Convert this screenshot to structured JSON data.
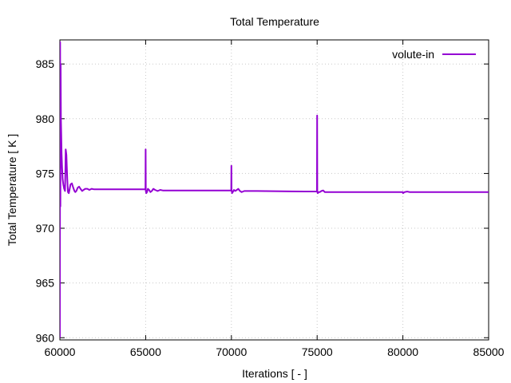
{
  "chart_data": {
    "type": "line",
    "title": "Total Temperature",
    "xlabel": "Iterations [ - ]",
    "ylabel": "Total Temperature [ K ]",
    "xlim": [
      60000,
      85000
    ],
    "ylim": [
      959.8,
      987.2
    ],
    "x_ticks": [
      60000,
      65000,
      70000,
      75000,
      80000,
      85000
    ],
    "y_ticks": [
      960,
      965,
      970,
      975,
      980,
      985
    ],
    "grid": true,
    "legend_position": "top-right",
    "series": [
      {
        "name": "volute-in",
        "color": "#9400d3",
        "x": [
          60000,
          60015,
          60030,
          60045,
          60060,
          60080,
          60100,
          60130,
          60160,
          60200,
          60250,
          60300,
          60340,
          60380,
          60400,
          60430,
          60470,
          60520,
          60560,
          60620,
          60700,
          60780,
          60850,
          60900,
          60960,
          61040,
          61120,
          61200,
          61300,
          61380,
          61480,
          61600,
          61720,
          61850,
          62000,
          62200,
          62500,
          63000,
          63500,
          64000,
          64500,
          64990,
          65000,
          65010,
          65040,
          65080,
          65130,
          65200,
          65280,
          65360,
          65450,
          65550,
          65700,
          65850,
          66000,
          66300,
          66700,
          67500,
          68500,
          69500,
          69990,
          70000,
          70010,
          70040,
          70080,
          70150,
          70230,
          70320,
          70400,
          70500,
          70600,
          70750,
          71000,
          71500,
          72500,
          73500,
          74500,
          74990,
          75000,
          75010,
          75040,
          75080,
          75150,
          75250,
          75350,
          75450,
          75550,
          75700,
          76000,
          76500,
          77500,
          78500,
          79500,
          79990,
          80010,
          80100,
          80250,
          80400,
          80700,
          81500,
          82500,
          83500,
          85000
        ],
        "values": [
          960.0,
          987.0,
          972.0,
          985.0,
          980.0,
          978.5,
          976.8,
          975.5,
          974.5,
          974.0,
          973.6,
          973.4,
          977.2,
          976.7,
          975.8,
          974.5,
          973.3,
          973.2,
          973.5,
          974.0,
          974.1,
          973.7,
          973.4,
          973.3,
          973.4,
          973.7,
          973.8,
          973.6,
          973.4,
          973.5,
          973.6,
          973.6,
          973.5,
          973.6,
          973.55,
          973.55,
          973.55,
          973.55,
          973.55,
          973.55,
          973.55,
          973.55,
          977.2,
          973.4,
          973.2,
          973.3,
          973.6,
          973.5,
          973.3,
          973.4,
          973.6,
          973.5,
          973.4,
          973.5,
          973.45,
          973.45,
          973.45,
          973.45,
          973.45,
          973.45,
          973.45,
          975.7,
          973.5,
          973.2,
          973.3,
          973.5,
          973.4,
          973.5,
          973.6,
          973.4,
          973.3,
          973.4,
          973.4,
          973.4,
          973.38,
          973.36,
          973.35,
          973.35,
          980.3,
          973.3,
          973.2,
          973.3,
          973.3,
          973.4,
          973.45,
          973.3,
          973.3,
          973.3,
          973.3,
          973.3,
          973.3,
          973.3,
          973.3,
          973.3,
          973.2,
          973.3,
          973.35,
          973.3,
          973.3,
          973.3,
          973.3,
          973.3,
          973.3
        ]
      }
    ]
  }
}
